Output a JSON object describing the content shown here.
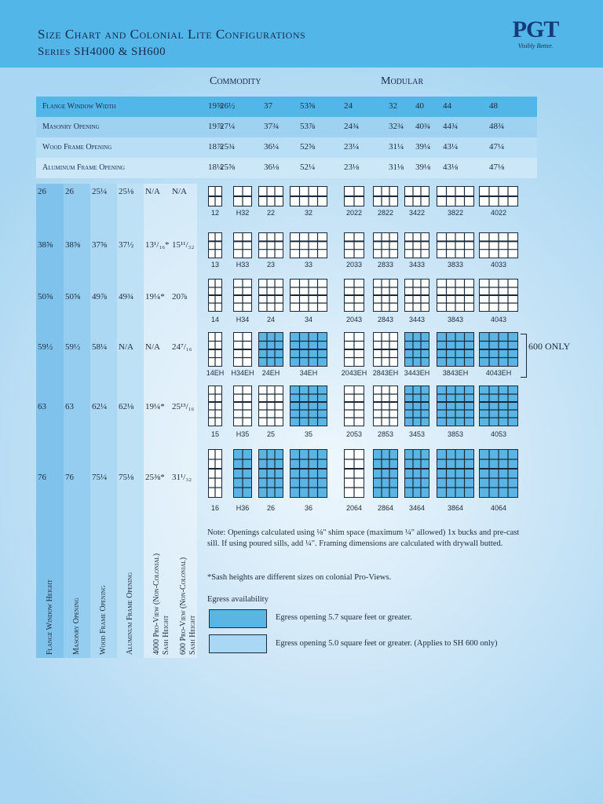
{
  "header": {
    "title": "Size Chart and Colonial Lite Configurations",
    "series": "Series SH4000 & SH600",
    "logo": "PGT",
    "tagline": "Visibly Better."
  },
  "sections": {
    "commodity": "Commodity",
    "modular": "Modular"
  },
  "width_rows": [
    {
      "label": "Flange Window Width",
      "values": [
        "19⅝",
        "26½",
        "37",
        "53⅝",
        "24",
        "32",
        "40",
        "44",
        "48"
      ]
    },
    {
      "label": "Masonry Opening",
      "values": [
        "19⅞",
        "27¼",
        "37¾",
        "53⅞",
        "24¾",
        "32¾",
        "40¾",
        "44¾",
        "48¾"
      ]
    },
    {
      "label": "Wood Frame Opening",
      "values": [
        "18⅞",
        "25¾",
        "36¼",
        "52⅝",
        "23¼",
        "31¼",
        "39¼",
        "43¼",
        "47¼"
      ]
    },
    {
      "label": "Aluminum Frame Opening",
      "values": [
        "18¼",
        "25⅝",
        "36⅛",
        "52¼",
        "23⅛",
        "31⅛",
        "39⅛",
        "43⅛",
        "47⅛"
      ]
    }
  ],
  "height_columns": [
    {
      "label": "Flange Window Height",
      "values": [
        "26",
        "38⅝",
        "50⅝",
        "59½",
        "63",
        "76"
      ]
    },
    {
      "label": "Masonry Opening",
      "values": [
        "26",
        "38⅝",
        "50⅝",
        "59½",
        "63",
        "76"
      ]
    },
    {
      "label": "Wood Frame Opening",
      "values": [
        "25¼",
        "37⅝",
        "49⅞",
        "58¼",
        "62¼",
        "75¼"
      ]
    },
    {
      "label": "Aluminum Frame Opening",
      "values": [
        "25⅛",
        "37½",
        "49¾",
        "N/A",
        "62⅛",
        "75⅛"
      ]
    },
    {
      "label": "4000 Pro-View (Non-Colonial) Sash Height",
      "values": [
        "N/A",
        "13¹/₁₆*",
        "19¼*",
        "N/A",
        "19¼*",
        "25⅜*"
      ]
    },
    {
      "label": "600 Pro-View (Non-Colonial) Sash Height",
      "values": [
        "N/A",
        "15¹¹/₃₂",
        "20⅞",
        "24⁷/₁₆",
        "25¹³/₁₆",
        "31¹/₃₂"
      ]
    }
  ],
  "grid": [
    [
      "12",
      "H32",
      "22",
      "32",
      "2022",
      "2822",
      "3422",
      "3822",
      "4022"
    ],
    [
      "13",
      "H33",
      "23",
      "33",
      "2033",
      "2833",
      "3433",
      "3833",
      "4033"
    ],
    [
      "14",
      "H34",
      "24",
      "34",
      "2043",
      "2843",
      "3443",
      "3843",
      "4043"
    ],
    [
      "14EH",
      "H34EH",
      "24EH",
      "34EH",
      "2043EH",
      "2843EH",
      "3443EH",
      "3843EH",
      "4043EH"
    ],
    [
      "15",
      "H35",
      "25",
      "35",
      "2053",
      "2853",
      "3453",
      "3853",
      "4053"
    ],
    [
      "16",
      "H36",
      "26",
      "36",
      "2064",
      "2864",
      "3464",
      "3864",
      "4064"
    ]
  ],
  "egress_flags": [
    [
      0,
      0,
      0,
      0,
      0,
      0,
      0,
      0,
      0
    ],
    [
      0,
      0,
      0,
      0,
      0,
      0,
      0,
      0,
      0
    ],
    [
      0,
      0,
      0,
      0,
      0,
      0,
      0,
      0,
      0
    ],
    [
      0,
      0,
      1,
      1,
      0,
      0,
      1,
      1,
      1
    ],
    [
      0,
      0,
      0,
      1,
      0,
      0,
      1,
      1,
      1
    ],
    [
      0,
      1,
      1,
      1,
      0,
      1,
      1,
      1,
      1
    ]
  ],
  "only_label": "600 ONLY",
  "note": "Note:  Openings calculated using ⅛\" shim space (maximum ¼\" allowed) 1x bucks and pre-cast sill. If using poured sills, add ¼\". Framing dimensions are calculated with drywall butted.",
  "sash_note": "*Sash heights are different sizes on colonial Pro-Views.",
  "egress": {
    "title": "Egress availability",
    "items": [
      "Egress opening 5.7 square feet or greater.",
      "Egress opening 5.0 square feet or greater. (Applies to SH 600 only)"
    ],
    "colors": [
      "#5ab4e4",
      "#a9d8f4"
    ]
  },
  "colors": {
    "header_bar": "#52b6e9",
    "row_dark": "#52b6e9",
    "row_light": "#9fd2f1",
    "col1": "#8cc9ee",
    "col2": "#a5d5f2"
  }
}
